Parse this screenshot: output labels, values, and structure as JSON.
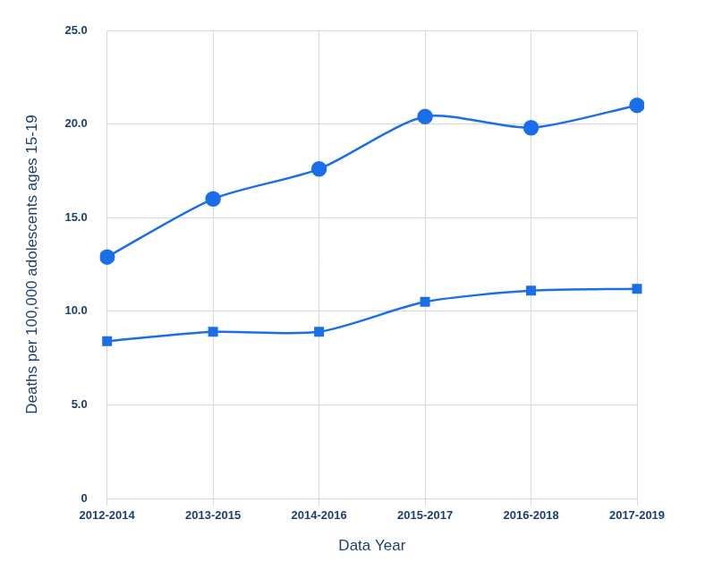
{
  "chart_data": {
    "type": "line",
    "x_label": "Data Year",
    "y_label": "Deaths per 100,000 adolescents ages 15-19",
    "categories": [
      "2012-2014",
      "2013-2015",
      "2014-2016",
      "2015-2017",
      "2016-2018",
      "2017-2019"
    ],
    "series": [
      {
        "color": "#1a6fe8",
        "marker": "circle",
        "line_style": "solid",
        "values": [
          12.9,
          16.0,
          17.6,
          20.4,
          19.8,
          21.0
        ]
      },
      {
        "color": "#1a6fe8",
        "marker": "square",
        "line_style": "solid",
        "values": [
          8.4,
          8.9,
          8.9,
          10.5,
          11.1,
          11.2
        ]
      }
    ],
    "ylim": [
      0,
      25
    ],
    "yticks": [
      0,
      {
        "value": 5,
        "label": "5.0"
      },
      {
        "value": 10,
        "label": "10.0"
      },
      {
        "value": 15,
        "label": "15.0"
      },
      {
        "value": 20,
        "label": "20.0"
      },
      {
        "value": 25,
        "label": "25.0"
      }
    ],
    "grid": true
  }
}
